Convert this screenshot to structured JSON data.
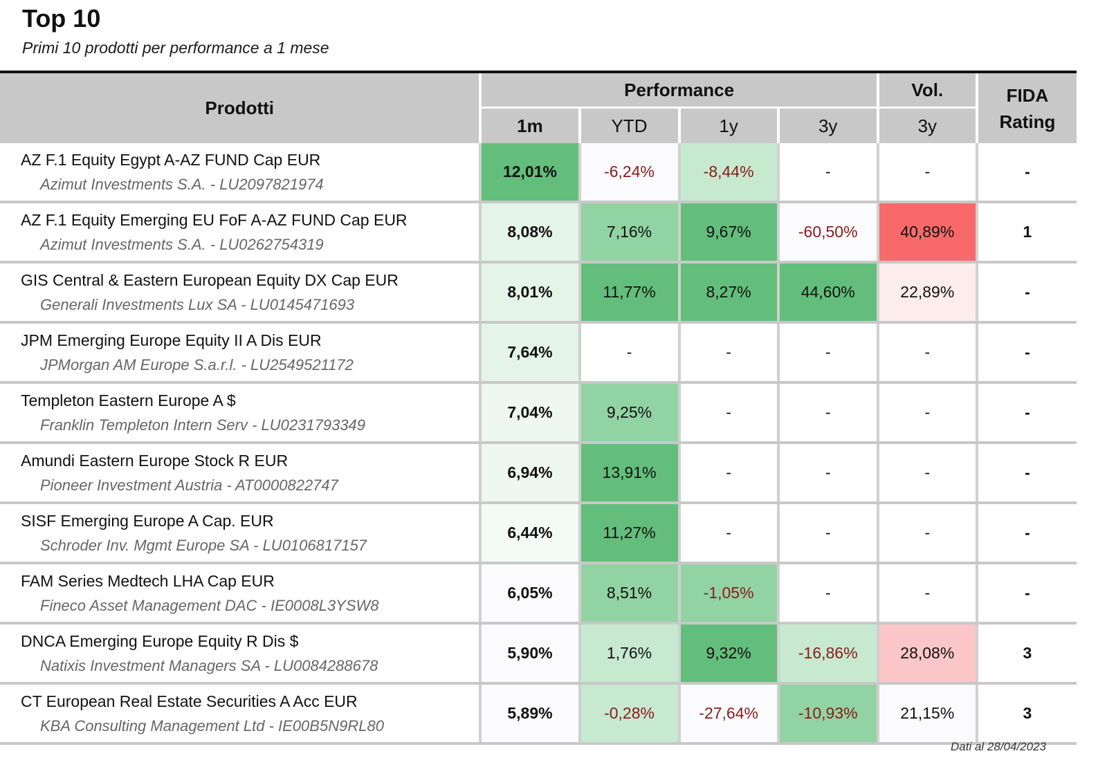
{
  "header": {
    "title": "Top 10",
    "subtitle": "Primi 10 prodotti per performance a 1 mese"
  },
  "table": {
    "col_prodotti": "Prodotti",
    "group_performance": "Performance",
    "group_vol": "Vol.",
    "col_fida": "FIDA Rating",
    "col_1m": "1m",
    "col_ytd": "YTD",
    "col_1y": "1y",
    "col_3y": "3y",
    "col_vol_3y": "3y",
    "rows": [
      {
        "name": "AZ F.1 Equity Egypt A-AZ FUND Cap EUR",
        "sub": "Azimut Investments S.A. - LU2097821974",
        "m1": "12,01%",
        "ytd": "-6,24%",
        "y1": "-8,44%",
        "y3": "-",
        "vol": "-",
        "fida": "-"
      },
      {
        "name": "AZ F.1 Equity Emerging EU FoF A-AZ FUND Cap EUR",
        "sub": "Azimut Investments S.A. - LU0262754319",
        "m1": "8,08%",
        "ytd": "7,16%",
        "y1": "9,67%",
        "y3": "-60,50%",
        "vol": "40,89%",
        "fida": "1"
      },
      {
        "name": "GIS Central & Eastern European Equity DX Cap EUR",
        "sub": "Generali Investments Lux SA - LU0145471693",
        "m1": "8,01%",
        "ytd": "11,77%",
        "y1": "8,27%",
        "y3": "44,60%",
        "vol": "22,89%",
        "fida": "-"
      },
      {
        "name": "JPM Emerging Europe Equity II A Dis EUR",
        "sub": "JPMorgan AM Europe S.a.r.l. - LU2549521172",
        "m1": "7,64%",
        "ytd": "-",
        "y1": "-",
        "y3": "-",
        "vol": "-",
        "fida": "-"
      },
      {
        "name": "Templeton Eastern Europe A $",
        "sub": "Franklin Templeton Intern Serv - LU0231793349",
        "m1": "7,04%",
        "ytd": "9,25%",
        "y1": "-",
        "y3": "-",
        "vol": "-",
        "fida": "-"
      },
      {
        "name": "Amundi Eastern Europe Stock R EUR",
        "sub": "Pioneer Investment Austria - AT0000822747",
        "m1": "6,94%",
        "ytd": "13,91%",
        "y1": "-",
        "y3": "-",
        "vol": "-",
        "fida": "-"
      },
      {
        "name": "SISF Emerging Europe A Cap. EUR",
        "sub": "Schroder Inv. Mgmt Europe SA - LU0106817157",
        "m1": "6,44%",
        "ytd": "11,27%",
        "y1": "-",
        "y3": "-",
        "vol": "-",
        "fida": "-"
      },
      {
        "name": "FAM Series Medtech LHA Cap EUR",
        "sub": "Fineco Asset Management DAC - IE0008L3YSW8",
        "m1": "6,05%",
        "ytd": "8,51%",
        "y1": "-1,05%",
        "y3": "-",
        "vol": "-",
        "fida": "-"
      },
      {
        "name": "DNCA Emerging Europe Equity R Dis $",
        "sub": "Natixis Investment Managers SA - LU0084288678",
        "m1": "5,90%",
        "ytd": "1,76%",
        "y1": "9,32%",
        "y3": "-16,86%",
        "vol": "28,08%",
        "fida": "3"
      },
      {
        "name": "CT European Real Estate Securities A Acc EUR",
        "sub": "KBA Consulting Management Ltd - IE00B5N9RL80",
        "m1": "5,89%",
        "ytd": "-0,28%",
        "y1": "-27,64%",
        "y3": "-10,93%",
        "vol": "21,15%",
        "fida": "3"
      }
    ]
  },
  "footer": {
    "date_label": "Dati al  28/04/2023"
  },
  "colors": {
    "header_gray": "#c8c8c8",
    "green_strong": "#63be7b",
    "green_mid": "#92d3a3",
    "green_light": "#c6e9cf",
    "green_pale": "#e4f4e8",
    "red_strong": "#f8696b",
    "red_light": "#fbc6c8",
    "red_pale": "#fdecec",
    "negative_text": "#8b1a1a"
  }
}
